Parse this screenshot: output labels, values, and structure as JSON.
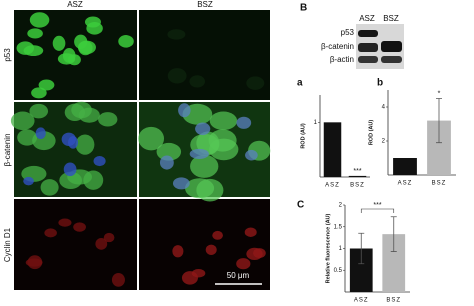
{
  "panels": {
    "label": "B",
    "columns": [
      "ASZ",
      "BSZ"
    ],
    "rows": [
      "p53",
      "β-catenin",
      "Cyclin D1"
    ],
    "scale_bar": "50 μm"
  },
  "blot": {
    "lanes": [
      "ASZ",
      "BSZ"
    ],
    "bands": [
      "p53",
      "β-catenin",
      "β-actin"
    ]
  },
  "chart_data": [
    {
      "type": "bar",
      "panel": "a",
      "ylabel": "ROD (AU)",
      "categories": [
        "ASZ",
        "BSZ"
      ],
      "values": [
        1,
        0.02
      ],
      "colors": [
        "#111111",
        "#111111"
      ],
      "ylim": [
        0,
        1.5
      ],
      "yticks": [
        1
      ],
      "annotation": "***"
    },
    {
      "type": "bar",
      "panel": "b",
      "ylabel": "ROD (AU)",
      "categories": [
        "ASZ",
        "BSZ"
      ],
      "values": [
        1,
        3.2
      ],
      "errors": [
        0,
        1.3
      ],
      "colors": [
        "#111111",
        "#b8b8b8"
      ],
      "ylim": [
        0,
        5
      ],
      "yticks": [
        2,
        4
      ],
      "annotation": "*"
    },
    {
      "type": "bar",
      "panel": "C",
      "ylabel": "Relative fluorescence (AU)",
      "categories": [
        "ASZ",
        "BSZ"
      ],
      "values": [
        1.0,
        1.33
      ],
      "errors": [
        0.35,
        0.4
      ],
      "colors": [
        "#111111",
        "#b8b8b8"
      ],
      "ylim": [
        0,
        2
      ],
      "yticks": [
        0.5,
        1,
        1.5,
        2
      ],
      "annotation": "***"
    }
  ]
}
